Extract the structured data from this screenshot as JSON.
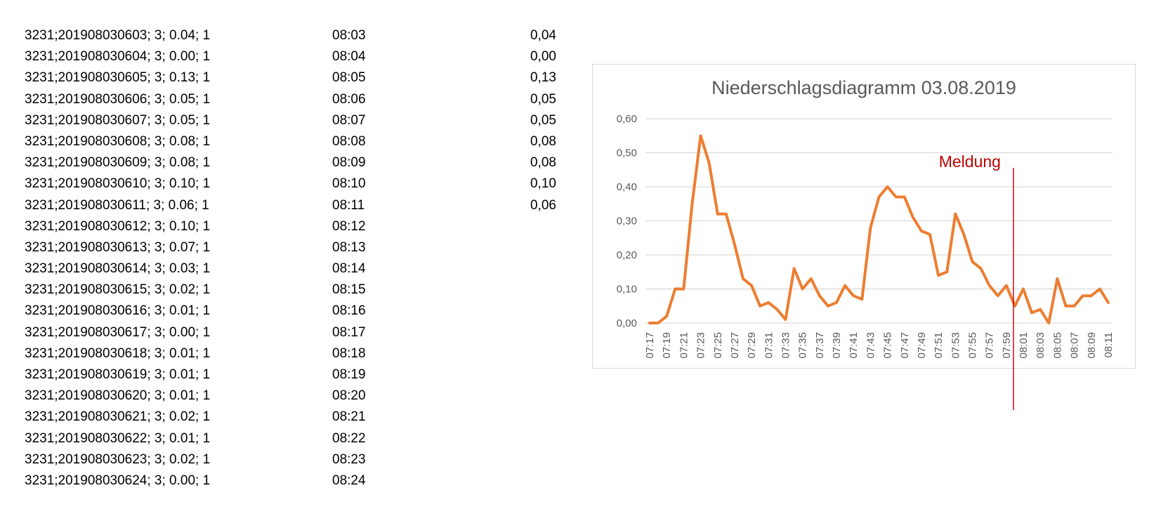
{
  "table": {
    "rows": [
      {
        "raw": "3231;201908030603;   3;   0.04; 1",
        "time": "08:03",
        "value": "0,04"
      },
      {
        "raw": "3231;201908030604;   3;   0.00; 1",
        "time": "08:04",
        "value": "0,00"
      },
      {
        "raw": "3231;201908030605;   3;   0.13; 1",
        "time": "08:05",
        "value": "0,13"
      },
      {
        "raw": "3231;201908030606;   3;   0.05; 1",
        "time": "08:06",
        "value": "0,05"
      },
      {
        "raw": "3231;201908030607;   3;   0.05; 1",
        "time": "08:07",
        "value": "0,05"
      },
      {
        "raw": "3231;201908030608;   3;   0.08; 1",
        "time": "08:08",
        "value": "0,08"
      },
      {
        "raw": "3231;201908030609;   3;   0.08; 1",
        "time": "08:09",
        "value": "0,08"
      },
      {
        "raw": "3231;201908030610;   3;   0.10; 1",
        "time": "08:10",
        "value": "0,10"
      },
      {
        "raw": "3231;201908030611;   3;   0.06; 1",
        "time": "08:11",
        "value": "0,06"
      },
      {
        "raw": "3231;201908030612;   3;   0.10; 1",
        "time": "08:12",
        "value": ""
      },
      {
        "raw": "3231;201908030613;   3;   0.07; 1",
        "time": "08:13",
        "value": ""
      },
      {
        "raw": "3231;201908030614;   3;   0.03; 1",
        "time": "08:14",
        "value": ""
      },
      {
        "raw": "3231;201908030615;   3;   0.02; 1",
        "time": "08:15",
        "value": ""
      },
      {
        "raw": "3231;201908030616;   3;   0.01; 1",
        "time": "08:16",
        "value": ""
      },
      {
        "raw": "3231;201908030617;   3;   0.00; 1",
        "time": "08:17",
        "value": ""
      },
      {
        "raw": "3231;201908030618;   3;   0.01; 1",
        "time": "08:18",
        "value": ""
      },
      {
        "raw": "3231;201908030619;   3;   0.01; 1",
        "time": "08:19",
        "value": ""
      },
      {
        "raw": "3231;201908030620;   3;   0.01; 1",
        "time": "08:20",
        "value": ""
      },
      {
        "raw": "3231;201908030621;   3;   0.02; 1",
        "time": "08:21",
        "value": ""
      },
      {
        "raw": "3231;201908030622;   3;   0.01; 1",
        "time": "08:22",
        "value": ""
      },
      {
        "raw": "3231;201908030623;   3;   0.02; 1",
        "time": "08:23",
        "value": ""
      },
      {
        "raw": "3231;201908030624;   3;   0.00; 1",
        "time": "08:24",
        "value": ""
      }
    ]
  },
  "chart_data": {
    "type": "line",
    "title": "Niederschlagsdiagramm 03.08.2019",
    "xlabel": "",
    "ylabel": "",
    "x": [
      "07:17",
      "07:18",
      "07:19",
      "07:20",
      "07:21",
      "07:22",
      "07:23",
      "07:24",
      "07:25",
      "07:26",
      "07:27",
      "07:28",
      "07:29",
      "07:30",
      "07:31",
      "07:32",
      "07:33",
      "07:34",
      "07:35",
      "07:36",
      "07:37",
      "07:38",
      "07:39",
      "07:40",
      "07:41",
      "07:42",
      "07:43",
      "07:44",
      "07:45",
      "07:46",
      "07:47",
      "07:48",
      "07:49",
      "07:50",
      "07:51",
      "07:52",
      "07:53",
      "07:54",
      "07:55",
      "07:56",
      "07:57",
      "07:58",
      "07:59",
      "08:00",
      "08:01",
      "08:02",
      "08:03",
      "08:04",
      "08:05",
      "08:06",
      "08:07",
      "08:08",
      "08:09",
      "08:10",
      "08:11"
    ],
    "x_tick_labels": [
      "07:17",
      "07:19",
      "07:21",
      "07:23",
      "07:25",
      "07:27",
      "07:29",
      "07:31",
      "07:33",
      "07:35",
      "07:37",
      "07:39",
      "07:41",
      "07:43",
      "07:45",
      "07:47",
      "07:49",
      "07:51",
      "07:53",
      "07:55",
      "07:57",
      "07:59",
      "08:01",
      "08:03",
      "08:05",
      "08:07",
      "08:09",
      "08:11"
    ],
    "series": [
      {
        "values": [
          0.0,
          0.0,
          0.02,
          0.1,
          0.1,
          0.35,
          0.55,
          0.47,
          0.32,
          0.32,
          0.23,
          0.13,
          0.11,
          0.05,
          0.06,
          0.04,
          0.01,
          0.16,
          0.1,
          0.13,
          0.08,
          0.05,
          0.06,
          0.11,
          0.08,
          0.07,
          0.28,
          0.37,
          0.4,
          0.37,
          0.37,
          0.31,
          0.27,
          0.26,
          0.14,
          0.15,
          0.32,
          0.26,
          0.18,
          0.16,
          0.11,
          0.08,
          0.11,
          0.05,
          0.1,
          0.03,
          0.04,
          0.0,
          0.13,
          0.05,
          0.05,
          0.08,
          0.08,
          0.1,
          0.06
        ],
        "color": "#ed7d31"
      }
    ],
    "ylim": [
      0,
      0.6
    ],
    "y_ticks": [
      0,
      0.1,
      0.2,
      0.3,
      0.4,
      0.5,
      0.6
    ],
    "y_tick_labels": [
      "0,00",
      "0,10",
      "0,20",
      "0,30",
      "0,40",
      "0,50",
      "0,60"
    ],
    "grid": true,
    "legend": "none",
    "annotation": {
      "text": "Meldung",
      "x": "08:00",
      "color": "#c00000"
    },
    "colors": {
      "grid": "#d9d9d9",
      "axis_text": "#595959",
      "border": "#d9d9d9"
    }
  }
}
